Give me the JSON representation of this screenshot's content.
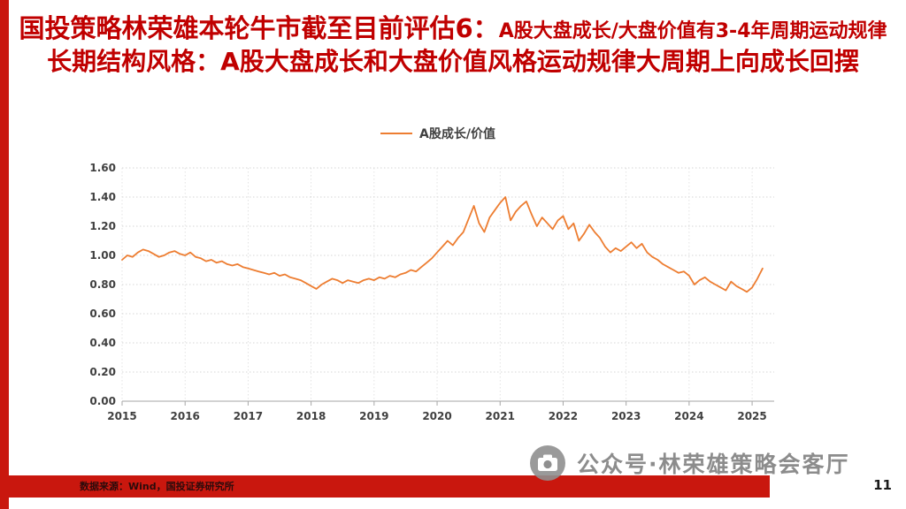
{
  "slide": {
    "title": {
      "line1_main": "国投策略林荣雄本轮牛市截至目前评估6：",
      "line1_sub": "A股大盘成长/大盘价值有3-4年周期运动规律",
      "line2": "长期结构风格：A股大盘成长和大盘价值风格运动规律大周期上向成长回摆"
    },
    "footer": {
      "source": "数据来源：Wind，国投证券研究所"
    },
    "watermark": {
      "text": "公众号·林荣雄策略会客厅"
    },
    "page_number": "11"
  },
  "colors": {
    "title_red": "#C00000",
    "footer_bar_red": "#C9170E",
    "series_orange": "#ED7D31",
    "watermark_gray": "#8F8F8F"
  },
  "chart_data": {
    "type": "line",
    "title": "",
    "legend_position": "top-center",
    "grid": "dotted horizontal and vertical",
    "legend": [
      {
        "name": "A股成长/价值",
        "color": "#ED7D31"
      }
    ],
    "ylim": [
      0,
      1.6
    ],
    "y_ticks": [
      0,
      0.2,
      0.4,
      0.6,
      0.8,
      1.0,
      1.2,
      1.4,
      1.6
    ],
    "y_tick_labels": [
      "0.00",
      "0.20",
      "0.40",
      "0.60",
      "0.80",
      "1.00",
      "1.20",
      "1.40",
      "1.60"
    ],
    "x_tick_labels": [
      "2015",
      "2016",
      "2017",
      "2018",
      "2019",
      "2020",
      "2021",
      "2022",
      "2023",
      "2024",
      "2025"
    ],
    "x_start": "2015-01",
    "x_frequency": "monthly",
    "series": [
      {
        "name": "A股成长/价值",
        "values": [
          0.97,
          1.0,
          0.99,
          1.02,
          1.04,
          1.03,
          1.01,
          0.99,
          1.0,
          1.02,
          1.03,
          1.01,
          1.0,
          1.02,
          0.99,
          0.98,
          0.96,
          0.97,
          0.95,
          0.96,
          0.94,
          0.93,
          0.94,
          0.92,
          0.91,
          0.9,
          0.89,
          0.88,
          0.87,
          0.88,
          0.86,
          0.87,
          0.85,
          0.84,
          0.83,
          0.81,
          0.79,
          0.77,
          0.8,
          0.82,
          0.84,
          0.83,
          0.81,
          0.83,
          0.82,
          0.81,
          0.83,
          0.84,
          0.83,
          0.85,
          0.84,
          0.86,
          0.85,
          0.87,
          0.88,
          0.9,
          0.89,
          0.92,
          0.95,
          0.98,
          1.02,
          1.06,
          1.1,
          1.07,
          1.12,
          1.16,
          1.25,
          1.34,
          1.22,
          1.16,
          1.26,
          1.31,
          1.36,
          1.4,
          1.24,
          1.3,
          1.34,
          1.37,
          1.28,
          1.2,
          1.26,
          1.22,
          1.18,
          1.24,
          1.27,
          1.18,
          1.22,
          1.1,
          1.15,
          1.21,
          1.16,
          1.12,
          1.06,
          1.02,
          1.05,
          1.03,
          1.06,
          1.09,
          1.05,
          1.08,
          1.02,
          0.99,
          0.97,
          0.94,
          0.92,
          0.9,
          0.88,
          0.89,
          0.86,
          0.8,
          0.83,
          0.85,
          0.82,
          0.8,
          0.78,
          0.76,
          0.82,
          0.79,
          0.77,
          0.75,
          0.78,
          0.84,
          0.91
        ]
      }
    ]
  }
}
